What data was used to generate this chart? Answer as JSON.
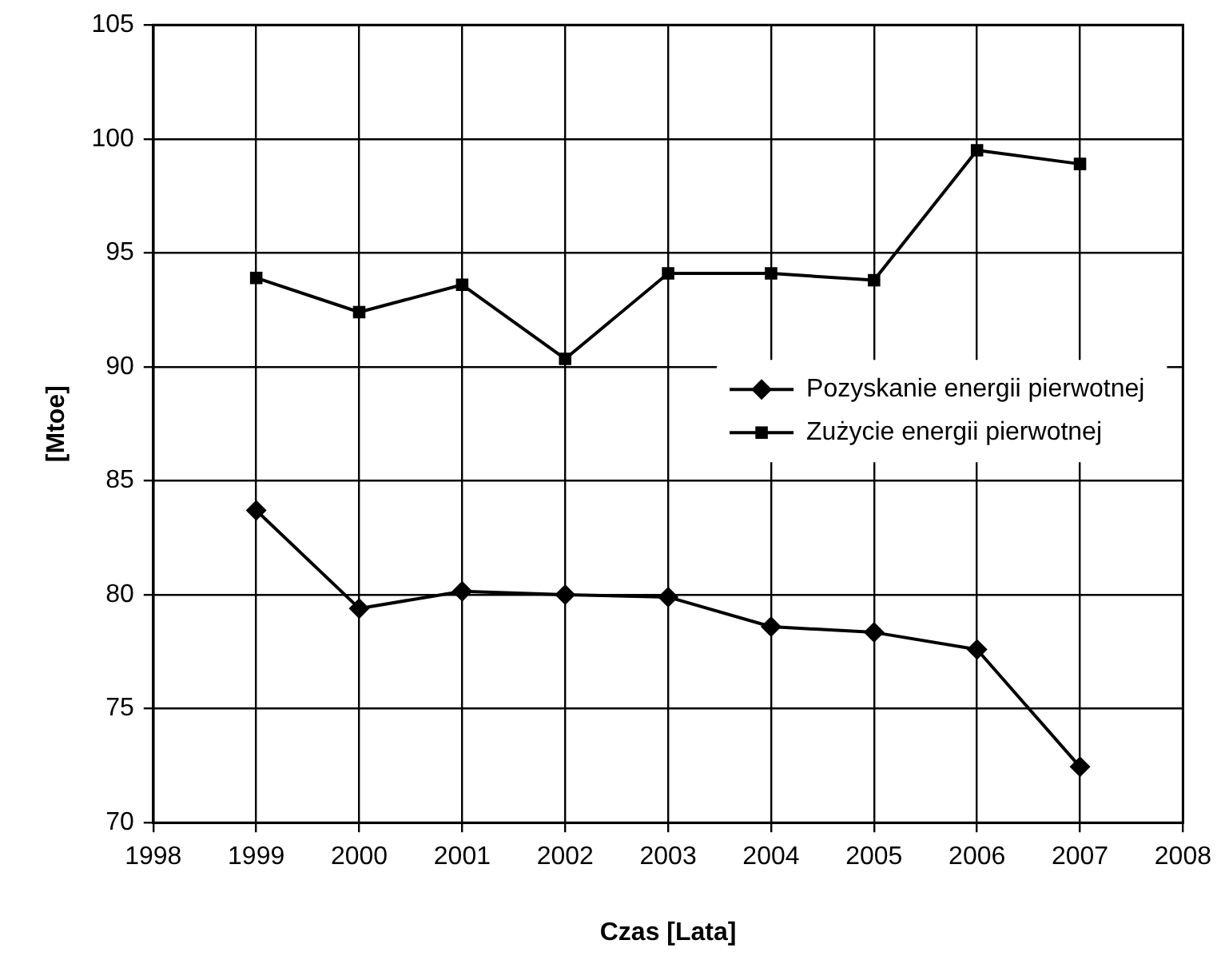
{
  "chart_data": {
    "type": "line",
    "xlabel": "Czas [Lata]",
    "ylabel": "[Mtoe]",
    "x": [
      1999,
      2000,
      2001,
      2002,
      2003,
      2004,
      2005,
      2006,
      2007
    ],
    "xlim": [
      1998,
      2008
    ],
    "xticks": [
      1998,
      1999,
      2000,
      2001,
      2002,
      2003,
      2004,
      2005,
      2006,
      2007,
      2008
    ],
    "ylim": [
      70,
      105
    ],
    "yticks": [
      70,
      75,
      80,
      85,
      90,
      95,
      100,
      105
    ],
    "grid": true,
    "legend": "right",
    "line_style": "solid",
    "series": [
      {
        "name": "Pozyskanie energii pierwotnej",
        "color": "#000000",
        "marker": "diamond",
        "values": [
          83.7,
          79.4,
          80.15,
          80.0,
          79.9,
          78.6,
          78.35,
          77.6,
          72.45
        ]
      },
      {
        "name": "Zużycie energii pierwotnej",
        "color": "#000000",
        "marker": "square",
        "values": [
          93.9,
          92.4,
          93.6,
          90.35,
          94.1,
          94.1,
          93.8,
          99.5,
          98.9
        ]
      }
    ]
  }
}
